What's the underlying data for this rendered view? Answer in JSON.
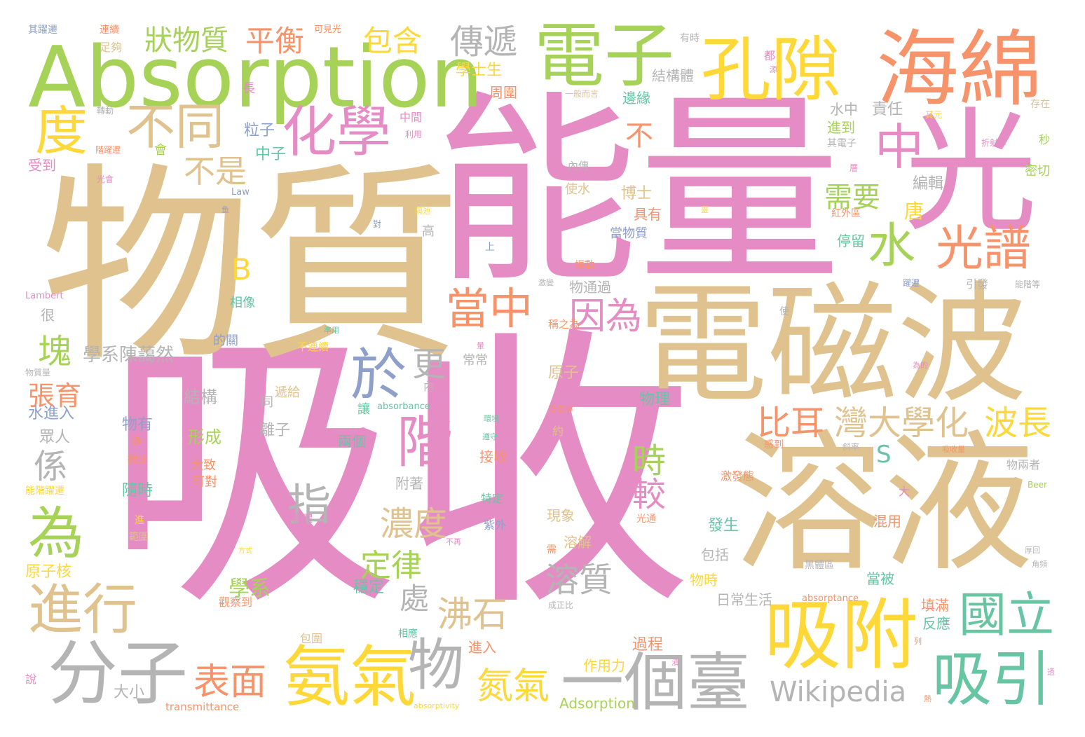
{
  "colors": {
    "pink": "#E58CC4",
    "tan": "#DFC28E",
    "green": "#A6D257",
    "yellow": "#FDD838",
    "orange": "#F7936A",
    "teal": "#67C5A3",
    "gray": "#B4B4B4",
    "blue": "#8EA0CA"
  },
  "words": [
    {
      "text": "吸收",
      "color": "pink"
    },
    {
      "text": "物質",
      "color": "tan"
    },
    {
      "text": "能量",
      "color": "pink"
    },
    {
      "text": "光",
      "color": "pink"
    },
    {
      "text": "電磁波",
      "color": "tan"
    },
    {
      "text": "溶液",
      "color": "tan"
    },
    {
      "text": "Absorption",
      "color": "green"
    },
    {
      "text": "電子",
      "color": "green"
    },
    {
      "text": "海綿",
      "color": "orange"
    },
    {
      "text": "孔隙",
      "color": "yellow"
    },
    {
      "text": "吸附",
      "color": "yellow"
    },
    {
      "text": "分子",
      "color": "gray"
    },
    {
      "text": "氨氣",
      "color": "yellow"
    },
    {
      "text": "一個臺",
      "color": "gray"
    },
    {
      "text": "吸引",
      "color": "teal"
    },
    {
      "text": "國立",
      "color": "teal"
    },
    {
      "text": "化學",
      "color": "pink"
    },
    {
      "text": "中",
      "color": "pink"
    },
    {
      "text": "光譜",
      "color": "orange"
    },
    {
      "text": "水",
      "color": "green"
    },
    {
      "text": "度",
      "color": "yellow"
    },
    {
      "text": "不同",
      "color": "tan"
    },
    {
      "text": "不是",
      "color": "tan"
    },
    {
      "text": "狀物質",
      "color": "green"
    },
    {
      "text": "平衡",
      "color": "orange"
    },
    {
      "text": "包含",
      "color": "yellow"
    },
    {
      "text": "傳遞",
      "color": "gray"
    },
    {
      "text": "當中",
      "color": "orange"
    },
    {
      "text": "因為",
      "color": "pink"
    },
    {
      "text": "於",
      "color": "blue"
    },
    {
      "text": "階",
      "color": "pink"
    },
    {
      "text": "更",
      "color": "gray"
    },
    {
      "text": "灣大學化",
      "color": "tan"
    },
    {
      "text": "波長",
      "color": "yellow"
    },
    {
      "text": "比耳",
      "color": "orange"
    },
    {
      "text": "為",
      "color": "green"
    },
    {
      "text": "係",
      "color": "gray"
    },
    {
      "text": "指",
      "color": "gray"
    },
    {
      "text": "進行",
      "color": "tan"
    },
    {
      "text": "表面",
      "color": "orange"
    },
    {
      "text": "物",
      "color": "gray"
    },
    {
      "text": "氮氣",
      "color": "yellow"
    },
    {
      "text": "Wikipedia",
      "color": "gray"
    },
    {
      "text": "濃度",
      "color": "tan"
    },
    {
      "text": "定律",
      "color": "green"
    },
    {
      "text": "溶質",
      "color": "gray"
    },
    {
      "text": "處",
      "color": "gray"
    },
    {
      "text": "沸石",
      "color": "tan"
    },
    {
      "text": "時",
      "color": "green"
    },
    {
      "text": "較",
      "color": "pink"
    },
    {
      "text": "需要",
      "color": "green"
    },
    {
      "text": "塊",
      "color": "green"
    },
    {
      "text": "張育",
      "color": "orange"
    },
    {
      "text": "B",
      "color": "yellow"
    },
    {
      "text": "S",
      "color": "teal"
    },
    {
      "text": "不",
      "color": "orange"
    },
    {
      "text": "學系陳藹然",
      "color": "gray"
    },
    {
      "text": "學系",
      "color": "green"
    },
    {
      "text": "結構",
      "color": "gray"
    },
    {
      "text": "形成",
      "color": "green"
    },
    {
      "text": "物有",
      "color": "blue"
    },
    {
      "text": "粒子",
      "color": "blue"
    },
    {
      "text": "中子",
      "color": "teal"
    },
    {
      "text": "學士生",
      "color": "yellow"
    },
    {
      "text": "周圍",
      "color": "orange"
    },
    {
      "text": "結構體",
      "color": "gray"
    },
    {
      "text": "邊緣",
      "color": "teal"
    },
    {
      "text": "水中",
      "color": "gray"
    },
    {
      "text": "進到",
      "color": "green"
    },
    {
      "text": "責任",
      "color": "gray"
    },
    {
      "text": "博士",
      "color": "tan"
    },
    {
      "text": "具有",
      "color": "orange"
    },
    {
      "text": "唐",
      "color": "yellow"
    },
    {
      "text": "編輯",
      "color": "gray"
    },
    {
      "text": "停留",
      "color": "teal"
    },
    {
      "text": "當物質",
      "color": "blue"
    },
    {
      "text": "使水",
      "color": "tan"
    },
    {
      "text": "物通過",
      "color": "gray"
    },
    {
      "text": "原子",
      "color": "tan"
    },
    {
      "text": "物理",
      "color": "teal"
    },
    {
      "text": "現象",
      "color": "tan"
    },
    {
      "text": "溶解",
      "color": "tan"
    },
    {
      "text": "發生",
      "color": "teal"
    },
    {
      "text": "包括",
      "color": "gray"
    },
    {
      "text": "當被",
      "color": "teal"
    },
    {
      "text": "混用",
      "color": "orange"
    },
    {
      "text": "填滿",
      "color": "orange"
    },
    {
      "text": "反應",
      "color": "teal"
    },
    {
      "text": "過程",
      "color": "orange"
    },
    {
      "text": "物時",
      "color": "yellow"
    },
    {
      "text": "作用力",
      "color": "yellow"
    },
    {
      "text": "Adsorption",
      "color": "green"
    },
    {
      "text": "日常生活",
      "color": "gray"
    },
    {
      "text": "進入",
      "color": "orange"
    },
    {
      "text": "穩定",
      "color": "teal"
    },
    {
      "text": "附著",
      "color": "gray"
    },
    {
      "text": "兩個",
      "color": "teal"
    },
    {
      "text": "接收",
      "color": "orange"
    },
    {
      "text": "離子",
      "color": "gray"
    },
    {
      "text": "隨時",
      "color": "teal"
    },
    {
      "text": "大致",
      "color": "orange"
    },
    {
      "text": "可對",
      "color": "orange"
    },
    {
      "text": "眾人",
      "color": "gray"
    },
    {
      "text": "水進入",
      "color": "blue"
    },
    {
      "text": "原子核",
      "color": "yellow"
    },
    {
      "text": "大小",
      "color": "gray"
    },
    {
      "text": "transmittance",
      "color": "orange"
    },
    {
      "text": "absorptivity",
      "color": "yellow"
    },
    {
      "text": "absorptance",
      "color": "orange"
    },
    {
      "text": "absorbance",
      "color": "teal"
    },
    {
      "text": "Lambert",
      "color": "pink"
    },
    {
      "text": "Law",
      "color": "blue"
    },
    {
      "text": "Beer",
      "color": "green"
    },
    {
      "text": "很",
      "color": "gray"
    },
    {
      "text": "受到",
      "color": "pink"
    },
    {
      "text": "其躍遷",
      "color": "blue"
    },
    {
      "text": "連續",
      "color": "orange"
    },
    {
      "text": "足夠",
      "color": "tan"
    },
    {
      "text": "可見光",
      "color": "orange"
    },
    {
      "text": "都",
      "color": "pink"
    },
    {
      "text": "有時",
      "color": "gray"
    },
    {
      "text": "長",
      "color": "pink"
    },
    {
      "text": "存在",
      "color": "tan"
    },
    {
      "text": "秒",
      "color": "green"
    },
    {
      "text": "密切",
      "color": "green"
    },
    {
      "text": "會",
      "color": "green"
    },
    {
      "text": "中間",
      "color": "pink"
    },
    {
      "text": "內傳",
      "color": "gray"
    },
    {
      "text": "高",
      "color": "gray"
    },
    {
      "text": "上",
      "color": "blue"
    },
    {
      "text": "對",
      "color": "blue"
    },
    {
      "text": "振動",
      "color": "orange"
    },
    {
      "text": "引發",
      "color": "gray"
    },
    {
      "text": "相像",
      "color": "teal"
    },
    {
      "text": "的關",
      "color": "blue"
    },
    {
      "text": "不連續",
      "color": "yellow"
    },
    {
      "text": "常常",
      "color": "gray"
    },
    {
      "text": "內",
      "color": "gray"
    },
    {
      "text": "讓",
      "color": "teal"
    },
    {
      "text": "約",
      "color": "tan"
    },
    {
      "text": "大",
      "color": "pink"
    },
    {
      "text": "同",
      "color": "gray"
    },
    {
      "text": "遞給",
      "color": "tan"
    },
    {
      "text": "黑體",
      "color": "pink"
    },
    {
      "text": "光通",
      "color": "orange"
    },
    {
      "text": "紫外",
      "color": "blue"
    },
    {
      "text": "特定",
      "color": "teal"
    },
    {
      "text": "黑體區",
      "color": "gray"
    },
    {
      "text": "觀察到",
      "color": "orange"
    },
    {
      "text": "包圍",
      "color": "tan"
    },
    {
      "text": "相應",
      "color": "teal"
    },
    {
      "text": "能階躍遷",
      "color": "yellow"
    },
    {
      "text": "說",
      "color": "pink"
    },
    {
      "text": "物質量",
      "color": "gray"
    },
    {
      "text": "過",
      "color": "orange"
    },
    {
      "text": "微波",
      "color": "orange"
    },
    {
      "text": "進",
      "color": "yellow"
    },
    {
      "text": "範圍",
      "color": "tan"
    },
    {
      "text": "激發態",
      "color": "orange"
    },
    {
      "text": "物兩者",
      "color": "gray"
    },
    {
      "text": "吸收率",
      "color": "orange"
    },
    {
      "text": "感到",
      "color": "orange"
    },
    {
      "text": "成正比",
      "color": "gray"
    },
    {
      "text": "其電子",
      "color": "gray"
    },
    {
      "text": "轉動",
      "color": "gray"
    },
    {
      "text": "一般而言",
      "color": "tan"
    },
    {
      "text": "其元",
      "color": "yellow"
    },
    {
      "text": "折射率",
      "color": "pink"
    },
    {
      "text": "紅外區",
      "color": "orange"
    },
    {
      "text": "光會",
      "color": "pink"
    },
    {
      "text": "階躍遷",
      "color": "orange"
    },
    {
      "text": "利用",
      "color": "pink"
    },
    {
      "text": "使",
      "color": "gray"
    },
    {
      "text": "躍遷",
      "color": "blue"
    },
    {
      "text": "能階等",
      "color": "gray"
    },
    {
      "text": "遵守",
      "color": "teal"
    },
    {
      "text": "環境",
      "color": "teal"
    },
    {
      "text": "斜率",
      "color": "gray"
    },
    {
      "text": "需",
      "color": "orange"
    },
    {
      "text": "方式",
      "color": "yellow"
    },
    {
      "text": "不再",
      "color": "pink"
    },
    {
      "text": "渗透",
      "color": "pink"
    },
    {
      "text": "角頻",
      "color": "gray"
    },
    {
      "text": "透",
      "color": "pink"
    },
    {
      "text": "為的",
      "color": "pink"
    },
    {
      "text": "暈",
      "color": "pink"
    },
    {
      "text": "稱之為",
      "color": "orange"
    },
    {
      "text": "遇",
      "color": "pink"
    },
    {
      "text": "準用",
      "color": "teal"
    },
    {
      "text": "層",
      "color": "pink"
    },
    {
      "text": "激變",
      "color": "gray"
    },
    {
      "text": "吸收量",
      "color": "orange"
    },
    {
      "text": "厚回",
      "color": "gray"
    },
    {
      "text": "漬",
      "color": "pink"
    },
    {
      "text": "隔池",
      "color": "yellow"
    },
    {
      "text": "鱼",
      "color": "blue"
    },
    {
      "text": "靈",
      "color": "yellow"
    },
    {
      "text": "熱",
      "color": "orange"
    },
    {
      "text": "列",
      "color": "orange"
    },
    {
      "text": "源",
      "color": "pink"
    }
  ]
}
